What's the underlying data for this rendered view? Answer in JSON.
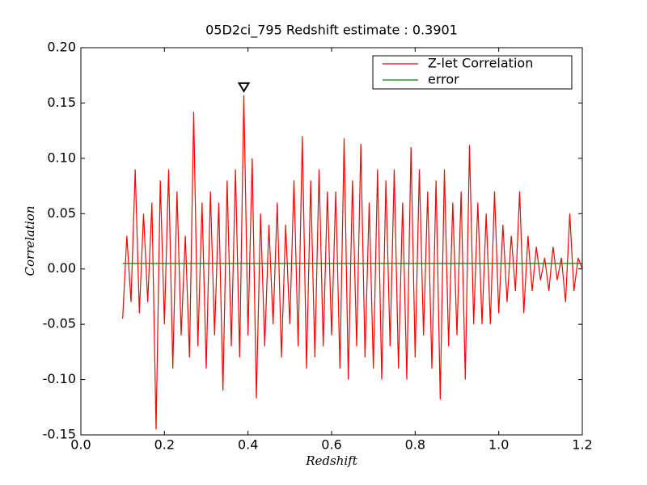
{
  "chart_data": {
    "type": "line",
    "title": "05D2ci_795 Redshift estimate : 0.3901",
    "xlabel": "Redshift",
    "ylabel": "Correlation",
    "xlim": [
      0.0,
      1.2
    ],
    "ylim": [
      -0.15,
      0.2
    ],
    "xticks": [
      {
        "value": 0.0,
        "label": "0.0"
      },
      0.2,
      0.4,
      0.6,
      0.8,
      {
        "value": 1.0,
        "label": "1.0"
      },
      1.2
    ],
    "yticks": [
      {
        "value": -0.15,
        "label": "-0.15"
      },
      {
        "value": -0.1,
        "label": "-0.10"
      },
      {
        "value": -0.05,
        "label": "-0.05"
      },
      {
        "value": 0.0,
        "label": "0.00"
      },
      {
        "value": 0.05,
        "label": "0.05"
      },
      {
        "value": 0.1,
        "label": "0.10"
      },
      {
        "value": 0.15,
        "label": "0.15"
      },
      {
        "value": 0.2,
        "label": "0.20"
      }
    ],
    "legend": "upper right",
    "marker": {
      "x": 0.3901,
      "y": 0.157
    },
    "series": [
      {
        "name": "Z-let Correlation",
        "color": "#ff0000",
        "x": [
          0.1,
          0.11,
          0.12,
          0.13,
          0.14,
          0.15,
          0.16,
          0.17,
          0.18,
          0.19,
          0.2,
          0.21,
          0.22,
          0.23,
          0.24,
          0.25,
          0.26,
          0.27,
          0.28,
          0.29,
          0.3,
          0.31,
          0.32,
          0.33,
          0.34,
          0.35,
          0.36,
          0.37,
          0.38,
          0.39,
          0.4,
          0.41,
          0.42,
          0.43,
          0.44,
          0.45,
          0.46,
          0.47,
          0.48,
          0.49,
          0.5,
          0.51,
          0.52,
          0.53,
          0.54,
          0.55,
          0.56,
          0.57,
          0.58,
          0.59,
          0.6,
          0.61,
          0.62,
          0.63,
          0.64,
          0.65,
          0.66,
          0.67,
          0.68,
          0.69,
          0.7,
          0.71,
          0.72,
          0.73,
          0.74,
          0.75,
          0.76,
          0.77,
          0.78,
          0.79,
          0.8,
          0.81,
          0.82,
          0.83,
          0.84,
          0.85,
          0.86,
          0.87,
          0.88,
          0.89,
          0.9,
          0.91,
          0.92,
          0.93,
          0.94,
          0.95,
          0.96,
          0.97,
          0.98,
          0.99,
          1.0,
          1.01,
          1.02,
          1.03,
          1.04,
          1.05,
          1.06,
          1.07,
          1.08,
          1.09,
          1.1,
          1.11,
          1.12,
          1.13,
          1.14,
          1.15,
          1.16,
          1.17,
          1.18,
          1.19,
          1.2
        ],
        "values": [
          -0.045,
          0.03,
          -0.03,
          0.09,
          -0.04,
          0.05,
          -0.03,
          0.06,
          -0.145,
          0.08,
          -0.05,
          0.09,
          -0.09,
          0.07,
          -0.06,
          0.03,
          -0.08,
          0.142,
          -0.07,
          0.06,
          -0.09,
          0.07,
          -0.06,
          0.06,
          -0.11,
          0.08,
          -0.07,
          0.09,
          -0.08,
          0.157,
          -0.06,
          0.1,
          -0.117,
          0.05,
          -0.07,
          0.04,
          -0.05,
          0.06,
          -0.08,
          0.04,
          -0.05,
          0.08,
          -0.07,
          0.12,
          -0.09,
          0.08,
          -0.08,
          0.09,
          -0.07,
          0.07,
          -0.06,
          0.07,
          -0.09,
          0.118,
          -0.1,
          0.08,
          -0.07,
          0.113,
          -0.08,
          0.06,
          -0.09,
          0.09,
          -0.1,
          0.08,
          -0.07,
          0.09,
          -0.09,
          0.06,
          -0.1,
          0.11,
          -0.08,
          0.09,
          -0.06,
          0.07,
          -0.09,
          0.08,
          -0.118,
          0.09,
          -0.07,
          0.06,
          -0.06,
          0.07,
          -0.1,
          0.112,
          -0.05,
          0.06,
          -0.05,
          0.05,
          -0.05,
          0.07,
          -0.04,
          0.04,
          -0.03,
          0.03,
          -0.02,
          0.07,
          -0.04,
          0.03,
          -0.02,
          0.02,
          -0.01,
          0.01,
          -0.02,
          0.02,
          -0.01,
          0.01,
          -0.03,
          0.05,
          -0.02,
          0.01,
          0.0
        ]
      },
      {
        "name": "error",
        "color": "#008000",
        "x": [
          0.1,
          1.2
        ],
        "values": [
          0.005,
          0.005
        ]
      }
    ]
  }
}
